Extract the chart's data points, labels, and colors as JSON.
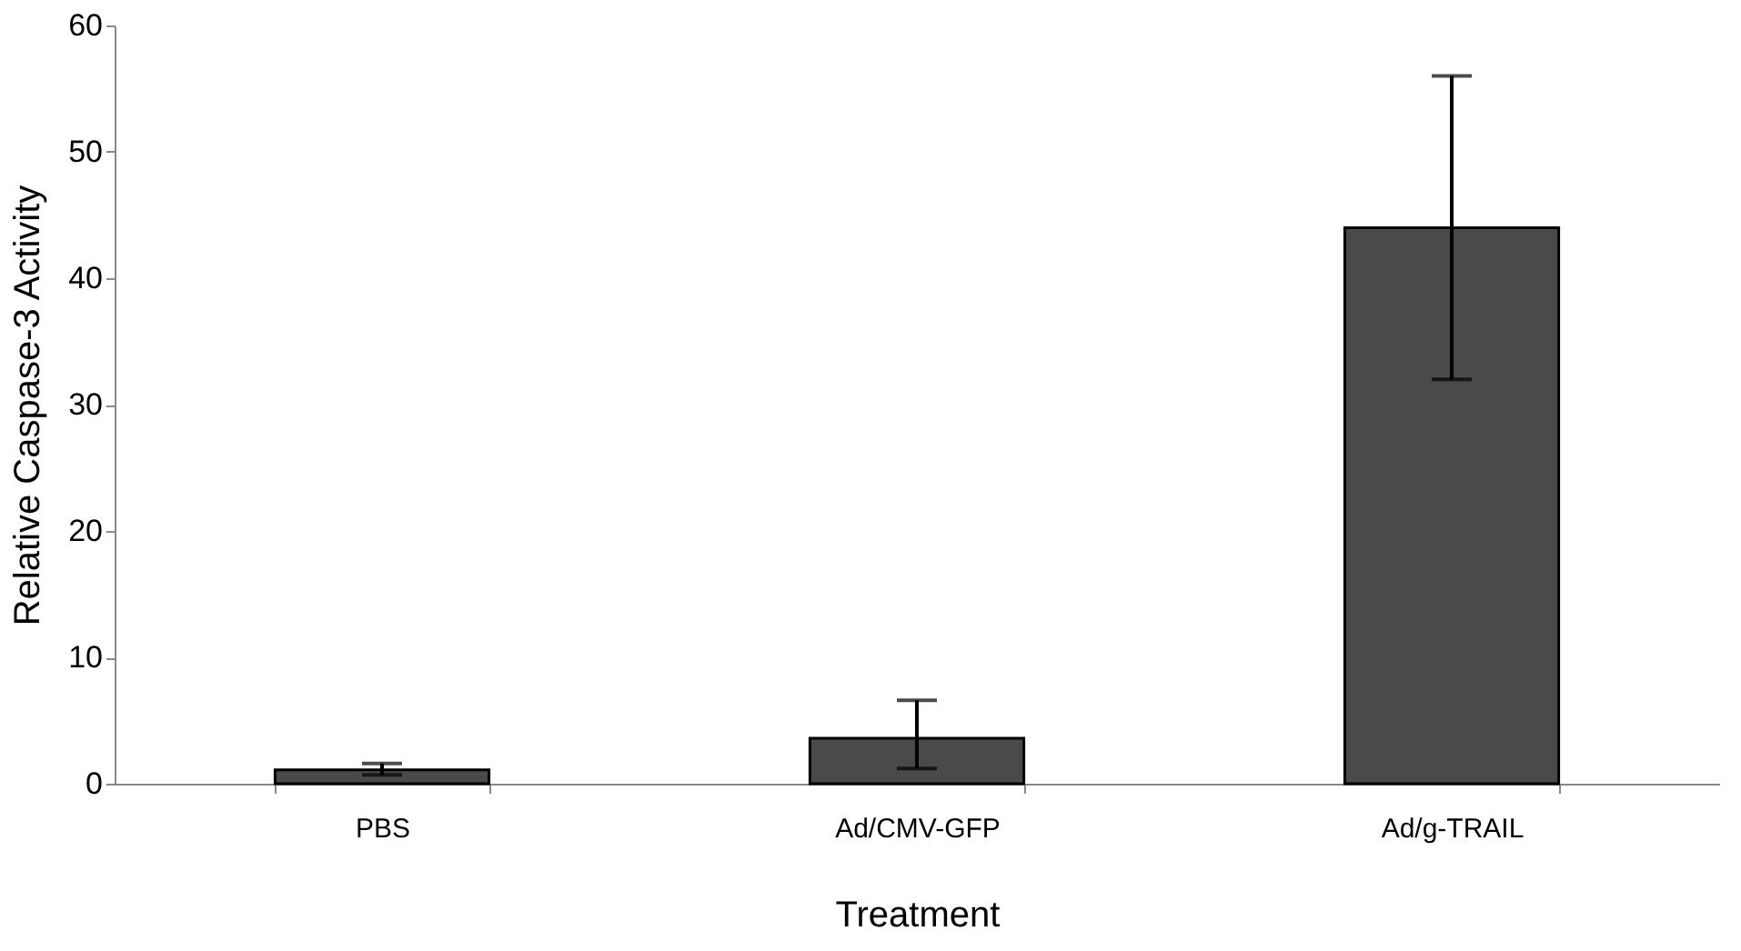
{
  "chart_data": {
    "type": "bar",
    "xlabel": "Treatment",
    "ylabel": "Relative Caspase-3 Activity",
    "categories": [
      "PBS",
      "Ad/CMV-GFP",
      "Ad/g-TRAIL"
    ],
    "values": [
      1.1,
      3.6,
      44
    ],
    "errors": [
      [
        0.7,
        1.6
      ],
      [
        1.2,
        6.6
      ],
      [
        32,
        56
      ]
    ],
    "color": "#4a4a4a",
    "ylim": [
      0,
      60
    ],
    "yticks": [
      0,
      10,
      20,
      30,
      40,
      50,
      60
    ],
    "grid": false
  }
}
